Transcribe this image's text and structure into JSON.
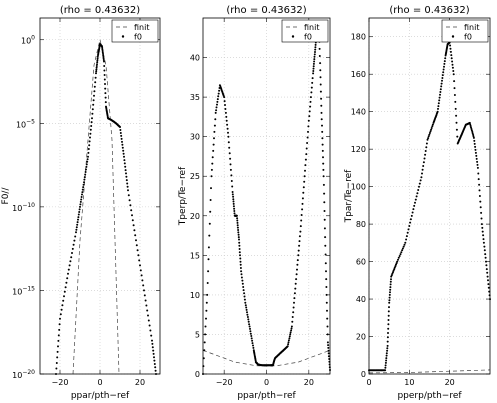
{
  "chart_data": [
    {
      "type": "scatter",
      "title": "(rho = 0.43632)",
      "xlabel": "ppar/pth−ref",
      "ylabel": "F0//",
      "yscale": "log",
      "xlim": [
        -30,
        30
      ],
      "ylim": [
        1e-20,
        20
      ],
      "grid": true,
      "legend_position": "top-right",
      "xticks": [
        {
          "v": -20,
          "label": "−20"
        },
        {
          "v": 0,
          "label": "0"
        },
        {
          "v": 20,
          "label": "20"
        }
      ],
      "yticks": [
        {
          "v": 1,
          "label": "10^0",
          "base": "10",
          "exp": "0"
        },
        {
          "v": 1e-05,
          "label": "10^-5",
          "base": "10",
          "exp": "−5"
        },
        {
          "v": 1e-10,
          "label": "10^-10",
          "base": "10",
          "exp": "−10"
        },
        {
          "v": 1e-15,
          "label": "10^-15",
          "base": "10",
          "exp": "−15"
        },
        {
          "v": 1e-20,
          "label": "10^-20",
          "base": "10",
          "exp": "−20"
        }
      ],
      "series": [
        {
          "name": "finit",
          "style": "dashed",
          "points": [
            [
              -13.5,
              1e-20
            ],
            [
              -10,
              1e-12
            ],
            [
              -6,
              1e-06
            ],
            [
              -3,
              0.03
            ],
            [
              0,
              1
            ],
            [
              3,
              0.03
            ],
            [
              6,
              1e-06
            ],
            [
              9.5,
              1e-20
            ]
          ]
        },
        {
          "name": "f0",
          "style": "dots",
          "points": [
            [
              -22,
              1e-20
            ],
            [
              -20,
              2e-17
            ],
            [
              -16,
              1e-14
            ],
            [
              -12,
              3e-12
            ],
            [
              -10,
              1e-10
            ],
            [
              -8,
              3e-09
            ],
            [
              -6,
              1e-07
            ],
            [
              -4,
              2e-05
            ],
            [
              -2,
              0.01
            ],
            [
              -1,
              0.12
            ],
            [
              0,
              0.55
            ],
            [
              1,
              0.4
            ],
            [
              2,
              0.05
            ],
            [
              3,
              0.0001
            ],
            [
              4,
              2e-05
            ],
            [
              6,
              1.5e-05
            ],
            [
              8,
              1e-05
            ],
            [
              10,
              6e-06
            ],
            [
              12,
              1e-07
            ],
            [
              14,
              1e-09
            ],
            [
              18,
              1e-12
            ],
            [
              22,
              1e-15
            ],
            [
              26,
              1e-18
            ],
            [
              28,
              1e-20
            ]
          ]
        }
      ]
    },
    {
      "type": "scatter",
      "title": "(rho = 0.43632)",
      "xlabel": "ppar/pth−ref",
      "ylabel": "Tperp/Te−ref",
      "xlim": [
        -30,
        30
      ],
      "ylim": [
        0,
        45
      ],
      "grid": true,
      "legend_position": "top-right",
      "xticks": [
        {
          "v": -20,
          "label": "−20"
        },
        {
          "v": 0,
          "label": "0"
        },
        {
          "v": 20,
          "label": "20"
        }
      ],
      "yticks": [
        {
          "v": 0,
          "label": "0"
        },
        {
          "v": 5,
          "label": "5"
        },
        {
          "v": 10,
          "label": "10"
        },
        {
          "v": 15,
          "label": "15"
        },
        {
          "v": 20,
          "label": "20"
        },
        {
          "v": 25,
          "label": "25"
        },
        {
          "v": 30,
          "label": "30"
        },
        {
          "v": 35,
          "label": "35"
        },
        {
          "v": 40,
          "label": "40"
        }
      ],
      "series": [
        {
          "name": "finit",
          "style": "dashed",
          "points": [
            [
              -30,
              3
            ],
            [
              -15,
              1.5
            ],
            [
              -5,
              1.05
            ],
            [
              0,
              1
            ],
            [
              5,
              1.05
            ],
            [
              15,
              1.5
            ],
            [
              30,
              3
            ]
          ]
        },
        {
          "name": "f0",
          "style": "dots",
          "points": [
            [
              -30,
              0
            ],
            [
              -28,
              10
            ],
            [
              -26,
              25
            ],
            [
              -24,
              33
            ],
            [
              -22,
              36.5
            ],
            [
              -20,
              35
            ],
            [
              -18,
              30
            ],
            [
              -16,
              23
            ],
            [
              -15,
              20
            ],
            [
              -14,
              20
            ],
            [
              -13,
              17
            ],
            [
              -12,
              13
            ],
            [
              -10,
              9
            ],
            [
              -8,
              6
            ],
            [
              -6,
              3
            ],
            [
              -5,
              1.5
            ],
            [
              -4,
              1.2
            ],
            [
              -2,
              1.1
            ],
            [
              0,
              1.1
            ],
            [
              2,
              1.1
            ],
            [
              3,
              1.1
            ],
            [
              4,
              2
            ],
            [
              6,
              2.5
            ],
            [
              8,
              3
            ],
            [
              10,
              3.5
            ],
            [
              12,
              6
            ],
            [
              14,
              12
            ],
            [
              16,
              18
            ],
            [
              18,
              25
            ],
            [
              20,
              32
            ],
            [
              22,
              38
            ],
            [
              23,
              41
            ],
            [
              24,
              44
            ],
            [
              25,
              42
            ],
            [
              26,
              33
            ],
            [
              27,
              25
            ],
            [
              28,
              14
            ],
            [
              29,
              4
            ],
            [
              30,
              0.5
            ]
          ]
        }
      ]
    },
    {
      "type": "scatter",
      "title": "(rho = 0.43632)",
      "xlabel": "pperp/pth−ref",
      "ylabel": "Tpar/Te−ref",
      "xlim": [
        0,
        30
      ],
      "ylim": [
        0,
        190
      ],
      "grid": true,
      "legend_position": "top-right",
      "xticks": [
        {
          "v": 0,
          "label": "0"
        },
        {
          "v": 10,
          "label": "10"
        },
        {
          "v": 20,
          "label": "20"
        }
      ],
      "yticks": [
        {
          "v": 0,
          "label": "0"
        },
        {
          "v": 20,
          "label": "20"
        },
        {
          "v": 40,
          "label": "40"
        },
        {
          "v": 60,
          "label": "60"
        },
        {
          "v": 80,
          "label": "80"
        },
        {
          "v": 100,
          "label": "100"
        },
        {
          "v": 120,
          "label": "120"
        },
        {
          "v": 140,
          "label": "140"
        },
        {
          "v": 160,
          "label": "160"
        },
        {
          "v": 180,
          "label": "180"
        }
      ],
      "series": [
        {
          "name": "finit",
          "style": "dashed",
          "points": [
            [
              0,
              0.6
            ],
            [
              10,
              0.8
            ],
            [
              20,
              1.5
            ],
            [
              30,
              2.2
            ]
          ]
        },
        {
          "name": "f0",
          "style": "dots",
          "points": [
            [
              0,
              2
            ],
            [
              2,
              2
            ],
            [
              4,
              2
            ],
            [
              4.6,
              15
            ],
            [
              5,
              38
            ],
            [
              5.5,
              52
            ],
            [
              7,
              60
            ],
            [
              9,
              70
            ],
            [
              11,
              88
            ],
            [
              13,
              105
            ],
            [
              14.5,
              125
            ],
            [
              16,
              134
            ],
            [
              17,
              140
            ],
            [
              18,
              155
            ],
            [
              19,
              170
            ],
            [
              19.5,
              176
            ],
            [
              20,
              177
            ],
            [
              21,
              160
            ],
            [
              22,
              123
            ],
            [
              23,
              128
            ],
            [
              24,
              133
            ],
            [
              25,
              134
            ],
            [
              26,
              126
            ],
            [
              27,
              110
            ],
            [
              28,
              80
            ],
            [
              29,
              60
            ],
            [
              30,
              40
            ]
          ]
        }
      ]
    }
  ],
  "legend": {
    "finit": "finit",
    "f0": "f0"
  }
}
